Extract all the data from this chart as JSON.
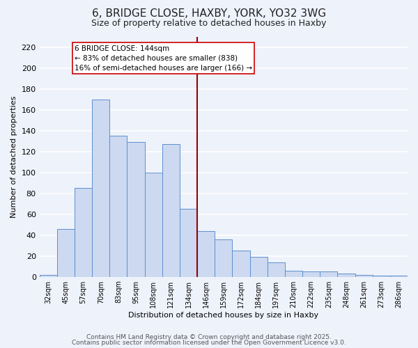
{
  "title": "6, BRIDGE CLOSE, HAXBY, YORK, YO32 3WG",
  "subtitle": "Size of property relative to detached houses in Haxby",
  "xlabel": "Distribution of detached houses by size in Haxby",
  "ylabel": "Number of detached properties",
  "bar_labels": [
    "32sqm",
    "45sqm",
    "57sqm",
    "70sqm",
    "83sqm",
    "95sqm",
    "108sqm",
    "121sqm",
    "134sqm",
    "146sqm",
    "159sqm",
    "172sqm",
    "184sqm",
    "197sqm",
    "210sqm",
    "222sqm",
    "235sqm",
    "248sqm",
    "261sqm",
    "273sqm",
    "286sqm"
  ],
  "bar_values": [
    2,
    46,
    85,
    170,
    135,
    129,
    100,
    127,
    65,
    44,
    36,
    25,
    19,
    14,
    6,
    5,
    5,
    3,
    2,
    1,
    1
  ],
  "bar_color": "#ccd9f0",
  "bar_edge_color": "#5b8fcf",
  "ylim": [
    0,
    230
  ],
  "yticks": [
    0,
    20,
    40,
    60,
    80,
    100,
    120,
    140,
    160,
    180,
    200,
    220
  ],
  "vline_x_index": 9,
  "vline_color": "#990000",
  "annotation_title": "6 BRIDGE CLOSE: 144sqm",
  "annotation_line1": "← 83% of detached houses are smaller (838)",
  "annotation_line2": "16% of semi-detached houses are larger (166) →",
  "annotation_box_color": "#ffffff",
  "annotation_box_edge_color": "#cc0000",
  "footer1": "Contains HM Land Registry data © Crown copyright and database right 2025.",
  "footer2": "Contains public sector information licensed under the Open Government Licence v3.0.",
  "bg_color": "#eef2fb",
  "grid_color": "#ffffff",
  "title_fontsize": 11,
  "subtitle_fontsize": 9,
  "annotation_fontsize": 7.5,
  "footer_fontsize": 6.5
}
